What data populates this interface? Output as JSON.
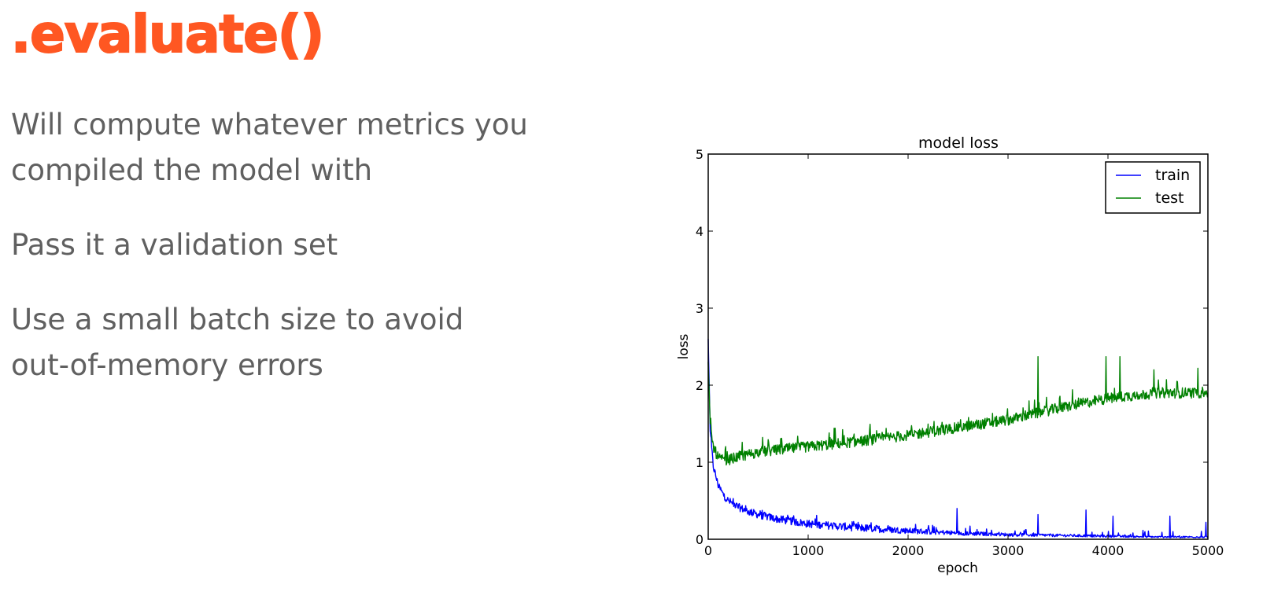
{
  "slide": {
    "title": ".evaluate()",
    "title_color": "#ff5722",
    "text_color": "#606060",
    "bullets": [
      "Will compute whatever metrics you\ncompiled the model with",
      "Pass it a validation set",
      "Use a small batch size to avoid\nout-of-memory errors"
    ]
  },
  "chart_data": {
    "type": "line",
    "title": "model loss",
    "xlabel": "epoch",
    "ylabel": "loss",
    "xlim": [
      0,
      5000
    ],
    "ylim": [
      0,
      5
    ],
    "xticks": [
      "0",
      "1000",
      "2000",
      "3000",
      "4000",
      "5000"
    ],
    "yticks": [
      "0",
      "1",
      "2",
      "3",
      "4",
      "5"
    ],
    "grid": false,
    "legend_position": "top-right",
    "series": [
      {
        "name": "train",
        "color": "#0000ff",
        "x": [
          0,
          20,
          50,
          100,
          150,
          200,
          300,
          400,
          500,
          700,
          1000,
          1500,
          2000,
          2500,
          3000,
          3500,
          4000,
          4500,
          5000
        ],
        "values": [
          2.6,
          1.4,
          0.95,
          0.7,
          0.58,
          0.5,
          0.42,
          0.36,
          0.32,
          0.26,
          0.2,
          0.15,
          0.11,
          0.08,
          0.06,
          0.05,
          0.04,
          0.03,
          0.03
        ],
        "spikes": [
          [
            2490,
            0.4
          ],
          [
            3300,
            0.32
          ],
          [
            3780,
            0.38
          ],
          [
            4050,
            0.3
          ],
          [
            4620,
            0.3
          ],
          [
            4980,
            0.22
          ]
        ]
      },
      {
        "name": "test",
        "color": "#008000",
        "x": [
          0,
          20,
          50,
          100,
          150,
          200,
          300,
          400,
          500,
          700,
          1000,
          1500,
          2000,
          2500,
          3000,
          3500,
          4000,
          4500,
          5000
        ],
        "values": [
          2.3,
          1.5,
          1.2,
          1.06,
          1.02,
          1.03,
          1.07,
          1.1,
          1.13,
          1.16,
          1.2,
          1.27,
          1.35,
          1.45,
          1.55,
          1.7,
          1.83,
          1.9,
          1.9
        ],
        "spikes": [
          [
            3300,
            2.37
          ],
          [
            3980,
            2.37
          ],
          [
            4120,
            2.37
          ],
          [
            4460,
            2.2
          ],
          [
            4900,
            2.22
          ]
        ]
      }
    ]
  }
}
